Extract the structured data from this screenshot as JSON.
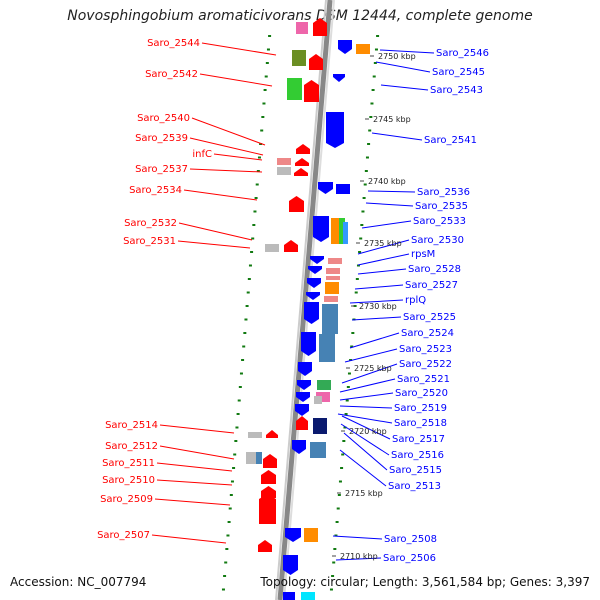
{
  "title": "Novosphingobium aromaticivorans DSM 12444, complete genome",
  "accession": "Accession: NC_007794",
  "summary": "Topology: circular; Length: 3,561,584 bp; Genes: 3,397",
  "colors": {
    "forward": "#ff0000",
    "reverse": "#0000ff",
    "backbone": "#888888",
    "dots": "#117a11"
  },
  "tick_labels": [
    "2750 kbp",
    "2745 kbp",
    "2740 kbp",
    "2735 kbp",
    "2730 kbp",
    "2725 kbp",
    "2720 kbp",
    "2715 kbp",
    "2710 kbp"
  ],
  "left_labels": [
    "Saro_2544",
    "Saro_2542",
    "Saro_2540",
    "Saro_2539",
    "infC",
    "Saro_2537",
    "Saro_2534",
    "Saro_2532",
    "Saro_2531",
    "Saro_2514",
    "Saro_2512",
    "Saro_2511",
    "Saro_2510",
    "Saro_2509",
    "Saro_2507"
  ],
  "right_labels": [
    "Saro_2546",
    "Saro_2545",
    "Saro_2543",
    "Saro_2541",
    "Saro_2536",
    "Saro_2535",
    "Saro_2533",
    "Saro_2530",
    "rpsM",
    "Saro_2528",
    "Saro_2527",
    "rplQ",
    "Saro_2525",
    "Saro_2524",
    "Saro_2523",
    "Saro_2522",
    "Saro_2521",
    "Saro_2520",
    "Saro_2519",
    "Saro_2518",
    "Saro_2517",
    "Saro_2516",
    "Saro_2515",
    "Saro_2513",
    "Saro_2508",
    "Saro_2506"
  ]
}
